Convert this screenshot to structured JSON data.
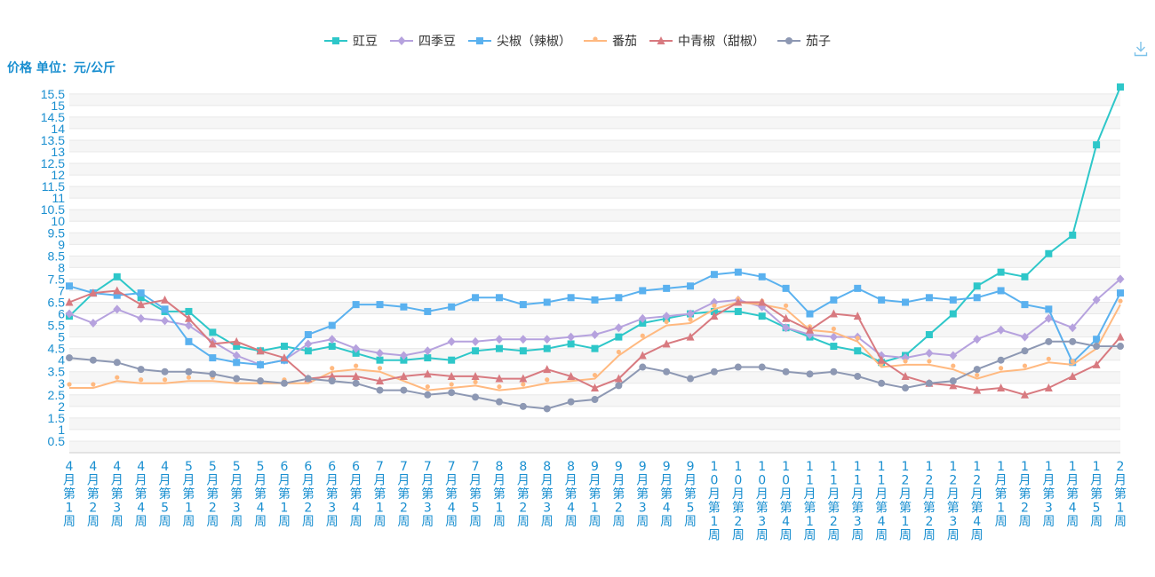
{
  "y_axis_title": "价格 单位：元/公斤",
  "toolbar": {
    "download_icon": "download-icon"
  },
  "colors": {
    "axis_label": "#1a8fd0",
    "grid": "#e8e8e8",
    "band": "#f6f6f6"
  },
  "chart_data": {
    "type": "line",
    "xlabel": "",
    "ylabel": "价格 单位：元/公斤",
    "ylim": [
      0,
      15.8
    ],
    "yticks": [
      0.5,
      1,
      1.5,
      2,
      2.5,
      3,
      3.5,
      4,
      4.5,
      5,
      5.5,
      6,
      6.5,
      7,
      7.5,
      8,
      8.5,
      9,
      9.5,
      10,
      10.5,
      11,
      11.5,
      12,
      12.5,
      13,
      13.5,
      14,
      14.5,
      15,
      15.5
    ],
    "legend_position": "top-center",
    "grid": true,
    "categories": [
      "4月第1周",
      "4月第2周",
      "4月第3周",
      "4月第4周",
      "4月第5周",
      "5月第1周",
      "5月第2周",
      "5月第3周",
      "5月第4周",
      "6月第1周",
      "6月第2周",
      "6月第3周",
      "6月第4周",
      "7月第1周",
      "7月第2周",
      "7月第3周",
      "7月第4周",
      "7月第5周",
      "8月第1周",
      "8月第2周",
      "8月第3周",
      "8月第4周",
      "9月第1周",
      "9月第2周",
      "9月第3周",
      "9月第4周",
      "9月第5周",
      "10月第1周",
      "10月第2周",
      "10月第3周",
      "10月第4周",
      "11月第1周",
      "11月第2周",
      "11月第3周",
      "11月第4周",
      "12月第1周",
      "12月第2周",
      "12月第3周",
      "12月第4周",
      "1月第1周",
      "1月第2周",
      "1月第3周",
      "1月第4周",
      "1月第5周",
      "2月第1周"
    ],
    "series": [
      {
        "name": "豇豆",
        "color": "#2ec7c9",
        "marker": "square",
        "values": [
          5.9,
          6.9,
          7.6,
          6.7,
          6.1,
          6.1,
          5.2,
          4.6,
          4.4,
          4.6,
          4.4,
          4.6,
          4.3,
          4.0,
          4.0,
          4.1,
          4.0,
          4.4,
          4.5,
          4.4,
          4.5,
          4.7,
          4.5,
          5.0,
          5.6,
          5.8,
          6.0,
          6.1,
          6.1,
          5.9,
          5.4,
          5.0,
          4.6,
          4.4,
          3.9,
          4.2,
          5.1,
          6.0,
          7.2,
          7.8,
          7.6,
          8.6,
          9.4,
          13.3,
          15.8
        ]
      },
      {
        "name": "四季豆",
        "color": "#b6a2de",
        "marker": "diamond",
        "values": [
          6.0,
          5.6,
          6.2,
          5.8,
          5.7,
          5.5,
          4.8,
          4.2,
          3.8,
          4.0,
          4.7,
          4.9,
          4.5,
          4.3,
          4.2,
          4.4,
          4.8,
          4.8,
          4.9,
          4.9,
          4.9,
          5.0,
          5.1,
          5.4,
          5.8,
          5.9,
          6.0,
          6.5,
          6.6,
          6.3,
          5.4,
          5.1,
          5.0,
          5.0,
          4.2,
          4.1,
          4.3,
          4.2,
          4.9,
          5.3,
          5.0,
          5.8,
          5.4,
          6.6,
          7.5
        ]
      },
      {
        "name": "尖椒（辣椒）",
        "color": "#5ab1ef",
        "marker": "square",
        "values": [
          7.2,
          6.9,
          6.8,
          6.9,
          6.2,
          4.8,
          4.1,
          3.9,
          3.8,
          4.0,
          5.1,
          5.5,
          6.4,
          6.4,
          6.3,
          6.1,
          6.3,
          6.7,
          6.7,
          6.4,
          6.5,
          6.7,
          6.6,
          6.7,
          7.0,
          7.1,
          7.2,
          7.7,
          7.8,
          7.6,
          7.1,
          6.0,
          6.6,
          7.1,
          6.6,
          6.5,
          6.7,
          6.6,
          6.7,
          7.0,
          6.4,
          6.2,
          3.9,
          4.9,
          6.9
        ]
      },
      {
        "name": "番茄",
        "color": "#ffb980",
        "marker": "pin",
        "values": [
          2.8,
          2.8,
          3.1,
          3.0,
          3.0,
          3.1,
          3.1,
          3.0,
          3.0,
          3.0,
          3.0,
          3.5,
          3.6,
          3.5,
          3.1,
          2.7,
          2.8,
          2.9,
          2.7,
          2.8,
          3.0,
          3.1,
          3.2,
          4.2,
          4.9,
          5.5,
          5.6,
          6.2,
          6.5,
          6.4,
          6.2,
          5.3,
          5.2,
          4.8,
          3.7,
          3.8,
          3.8,
          3.6,
          3.2,
          3.5,
          3.6,
          3.9,
          3.8,
          4.5,
          6.4
        ]
      },
      {
        "name": "中青椒（甜椒）",
        "color": "#d87a80",
        "marker": "triangle",
        "values": [
          6.5,
          6.9,
          7.0,
          6.4,
          6.6,
          5.8,
          4.7,
          4.8,
          4.4,
          4.1,
          3.2,
          3.3,
          3.3,
          3.1,
          3.3,
          3.4,
          3.3,
          3.3,
          3.2,
          3.2,
          3.6,
          3.3,
          2.8,
          3.2,
          4.2,
          4.7,
          5.0,
          5.9,
          6.5,
          6.5,
          5.8,
          5.3,
          6.0,
          5.9,
          4.0,
          3.3,
          3.0,
          2.9,
          2.7,
          2.8,
          2.5,
          2.8,
          3.3,
          3.8,
          5.0
        ]
      },
      {
        "name": "茄子",
        "color": "#8d98b3",
        "marker": "circle",
        "values": [
          4.1,
          4.0,
          3.9,
          3.6,
          3.5,
          3.5,
          3.4,
          3.2,
          3.1,
          3.0,
          3.2,
          3.1,
          3.0,
          2.7,
          2.7,
          2.5,
          2.6,
          2.4,
          2.2,
          2.0,
          1.9,
          2.2,
          2.3,
          2.9,
          3.7,
          3.5,
          3.2,
          3.5,
          3.7,
          3.7,
          3.5,
          3.4,
          3.5,
          3.3,
          3.0,
          2.8,
          3.0,
          3.1,
          3.6,
          4.0,
          4.4,
          4.8,
          4.8,
          4.6,
          4.6
        ]
      }
    ]
  }
}
